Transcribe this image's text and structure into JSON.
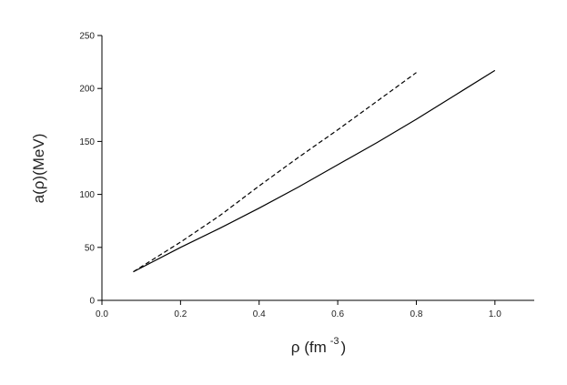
{
  "chart_data": {
    "type": "line",
    "ylabel": "a(ρ)(MeV)",
    "xlabel": [
      "ρ (fm",
      "-3",
      ")"
    ],
    "xlim": [
      0,
      1.1
    ],
    "ylim": [
      0,
      250
    ],
    "xticks": [
      {
        "value": 0,
        "label": "0.0"
      },
      0.2,
      0.4,
      0.6,
      0.8,
      {
        "value": 1,
        "label": "1.0"
      }
    ],
    "yticks": [
      0,
      50,
      100,
      150,
      200,
      250
    ],
    "series": [
      {
        "color": "#000000",
        "dash": false,
        "x": [
          0.08,
          0.2,
          0.3,
          0.4,
          0.5,
          0.6,
          0.7,
          0.8,
          0.9,
          1.0
        ],
        "values": [
          27,
          50,
          68,
          87,
          107,
          128,
          149,
          171,
          194,
          217
        ]
      },
      {
        "color": "#000000",
        "dash": true,
        "x": [
          0.08,
          0.2,
          0.3,
          0.4,
          0.5,
          0.6,
          0.7,
          0.8
        ],
        "values": [
          27,
          55,
          80,
          108,
          135,
          161,
          188,
          215
        ]
      }
    ]
  }
}
